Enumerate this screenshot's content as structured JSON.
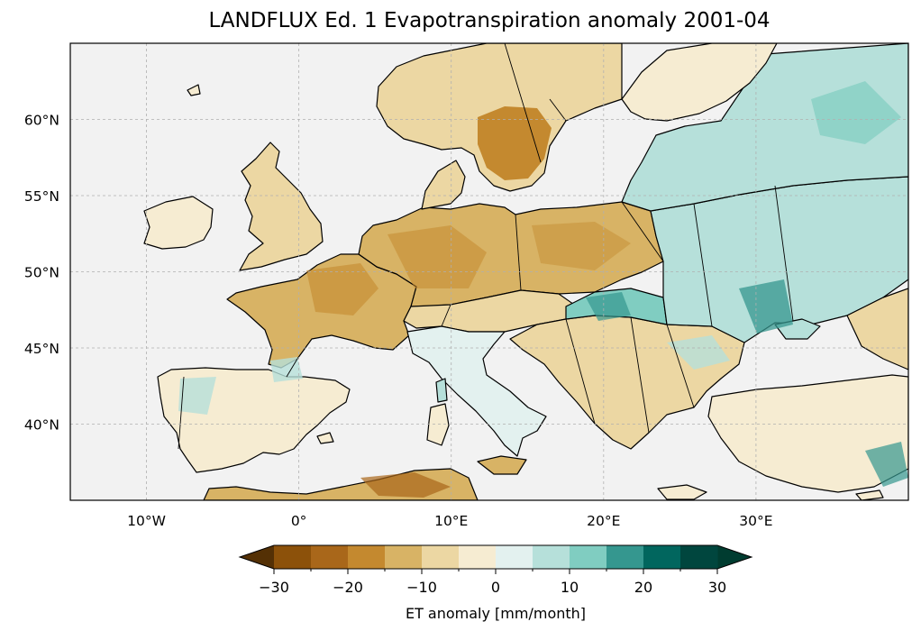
{
  "title": "LANDFLUX Ed. 1 Evapotranspiration anomaly 2001-04",
  "map": {
    "extent": {
      "lon": [
        -15,
        40
      ],
      "lat": [
        35,
        65
      ]
    },
    "longitude_ticks": [
      {
        "value": -10,
        "label": "10°W"
      },
      {
        "value": 0,
        "label": "0°"
      },
      {
        "value": 10,
        "label": "10°E"
      },
      {
        "value": 20,
        "label": "20°E"
      },
      {
        "value": 30,
        "label": "30°E"
      }
    ],
    "latitude_ticks": [
      {
        "value": 40,
        "label": "40°N"
      },
      {
        "value": 45,
        "label": "45°N"
      },
      {
        "value": 50,
        "label": "50°N"
      },
      {
        "value": 55,
        "label": "55°N"
      },
      {
        "value": 60,
        "label": "60°N"
      }
    ],
    "gridlines": true,
    "colors": {
      "ocean": "#f2f2f2",
      "coast": "#000000",
      "grid": "#b0b0b0"
    }
  },
  "colorbar": {
    "label": "ET anomaly [mm/month]",
    "bounds": [
      -30,
      -25,
      -20,
      -15,
      -10,
      -5,
      0,
      5,
      10,
      15,
      20,
      25,
      30
    ],
    "tick_values": [
      -30,
      -20,
      -10,
      0,
      10,
      20,
      30
    ],
    "tick_labels": [
      "−30",
      "−20",
      "−10",
      "0",
      "10",
      "20",
      "30"
    ],
    "colors": [
      "#8c510a",
      "#a9671a",
      "#c4892f",
      "#d8b365",
      "#ecd7a3",
      "#f6ecd2",
      "#e3f1ef",
      "#b6e0da",
      "#80cdc1",
      "#35978f",
      "#01665e",
      "#00463e"
    ],
    "under_color": "#543005",
    "over_color": "#003c30",
    "extend": "both"
  }
}
